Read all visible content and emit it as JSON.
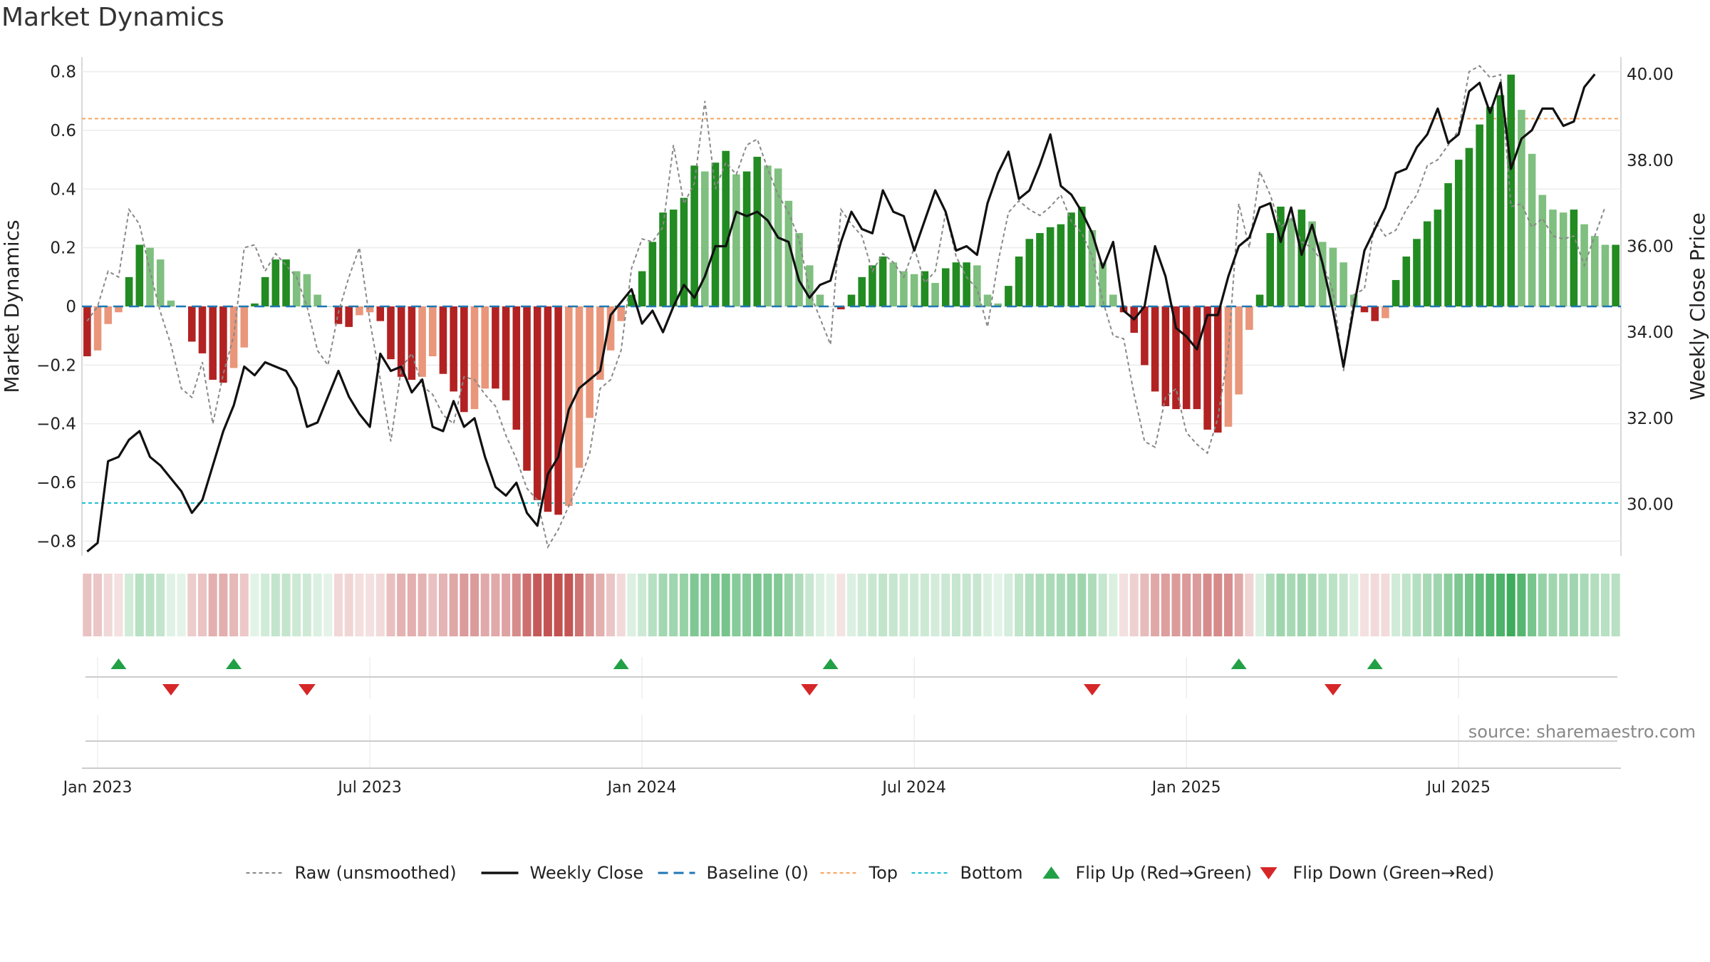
{
  "title": "Market Dynamics",
  "source": "source: sharemaestro.com",
  "chart_data": {
    "type": "bar+line",
    "title": "Market Dynamics",
    "ylabel": "Market Dynamics",
    "y2label": "Weekly Close Price",
    "ylim": [
      -0.85,
      0.85
    ],
    "y2lim": [
      28.8,
      40.4
    ],
    "yticks": [
      "0.8",
      "0.6",
      "0.4",
      "0.2",
      "0",
      "−0.2",
      "−0.4",
      "−0.6",
      "−0.8"
    ],
    "ytick_values": [
      0.8,
      0.6,
      0.4,
      0.2,
      0,
      -0.2,
      -0.4,
      -0.6,
      -0.8
    ],
    "y2ticks": [
      "40.00",
      "38.00",
      "36.00",
      "34.00",
      "32.00",
      "30.00"
    ],
    "y2tick_values": [
      40,
      38,
      36,
      34,
      32,
      30
    ],
    "xtick_labels": [
      "Jan 2023",
      "Jul 2023",
      "Jan 2024",
      "Jul 2024",
      "Jan 2025",
      "Jul 2025"
    ],
    "xtick_weeks": [
      1,
      27,
      53,
      79,
      105,
      131
    ],
    "top_line": 0.64,
    "bottom_line": -0.67,
    "baseline": 0,
    "dynamics": [
      -0.17,
      -0.15,
      -0.06,
      -0.02,
      0.1,
      0.21,
      0.2,
      0.16,
      0.02,
      0,
      -0.12,
      -0.16,
      -0.25,
      -0.26,
      -0.21,
      -0.14,
      0.01,
      0.1,
      0.16,
      0.16,
      0.12,
      0.11,
      0.04,
      0,
      -0.06,
      -0.07,
      -0.03,
      -0.02,
      -0.05,
      -0.18,
      -0.24,
      -0.25,
      -0.24,
      -0.17,
      -0.23,
      -0.29,
      -0.36,
      -0.35,
      -0.28,
      -0.28,
      -0.32,
      -0.42,
      -0.56,
      -0.66,
      -0.7,
      -0.71,
      -0.68,
      -0.55,
      -0.38,
      -0.25,
      -0.15,
      -0.05,
      0.04,
      0.12,
      0.22,
      0.32,
      0.33,
      0.37,
      0.48,
      0.46,
      0.49,
      0.53,
      0.45,
      0.46,
      0.51,
      0.48,
      0.47,
      0.36,
      0.25,
      0.14,
      0.04,
      0,
      -0.01,
      0.04,
      0.1,
      0.14,
      0.17,
      0.15,
      0.12,
      0.11,
      0.12,
      0.08,
      0.13,
      0.15,
      0.15,
      0.14,
      0.04,
      0.01,
      0.07,
      0.17,
      0.23,
      0.25,
      0.27,
      0.28,
      0.32,
      0.34,
      0.26,
      0.15,
      0.04,
      -0.02,
      -0.09,
      -0.2,
      -0.29,
      -0.34,
      -0.35,
      -0.35,
      -0.35,
      -0.42,
      -0.43,
      -0.41,
      -0.3,
      -0.08,
      0.04,
      0.25,
      0.34,
      0.3,
      0.33,
      0.29,
      0.22,
      0.2,
      0.15,
      0.04,
      -0.02,
      -0.05,
      -0.04,
      0.09,
      0.17,
      0.23,
      0.29,
      0.33,
      0.42,
      0.5,
      0.54,
      0.62,
      0.68,
      0.72,
      0.79,
      0.67,
      0.52,
      0.38,
      0.33,
      0.32,
      0.33,
      0.28,
      0.24,
      0.21,
      0.21
    ],
    "raw": [
      -0.05,
      0,
      0.12,
      0.1,
      0.33,
      0.28,
      0.12,
      -0.02,
      -0.13,
      -0.28,
      -0.31,
      -0.19,
      -0.4,
      -0.23,
      -0.1,
      0.2,
      0.21,
      0.12,
      0.18,
      0.14,
      0.1,
      0,
      -0.15,
      -0.2,
      -0.02,
      0.1,
      0.2,
      -0.05,
      -0.25,
      -0.46,
      -0.21,
      -0.16,
      -0.27,
      -0.3,
      -0.37,
      -0.4,
      -0.24,
      -0.25,
      -0.3,
      -0.34,
      -0.44,
      -0.52,
      -0.62,
      -0.66,
      -0.82,
      -0.76,
      -0.68,
      -0.6,
      -0.5,
      -0.28,
      -0.25,
      -0.15,
      0.13,
      0.23,
      0.22,
      0.27,
      0.55,
      0.35,
      0.42,
      0.7,
      0.4,
      0.49,
      0.45,
      0.55,
      0.57,
      0.47,
      0.38,
      0.32,
      0.23,
      0.05,
      -0.04,
      -0.13,
      0.33,
      0.28,
      0.24,
      0.12,
      0.18,
      0.15,
      0.1,
      0.2,
      0.08,
      0.12,
      0.32,
      0.17,
      0.1,
      0.06,
      -0.07,
      0.15,
      0.32,
      0.36,
      0.33,
      0.31,
      0.34,
      0.38,
      0.29,
      0.25,
      0.17,
      0.02,
      -0.1,
      -0.11,
      -0.3,
      -0.46,
      -0.48,
      -0.31,
      -0.28,
      -0.43,
      -0.47,
      -0.5,
      -0.38,
      -0.15,
      0.35,
      0.2,
      0.46,
      0.38,
      0.27,
      0.3,
      0.22,
      0.2,
      0.15,
      0.05,
      -0.22,
      0.04,
      0.06,
      0.29,
      0.24,
      0.26,
      0.33,
      0.38,
      0.48,
      0.5,
      0.55,
      0.6,
      0.8,
      0.82,
      0.78,
      0.79,
      0.34,
      0.35,
      0.27,
      0.3,
      0.24,
      0.23,
      0.24,
      0.14,
      0.24,
      0.34
    ],
    "close": [
      28.9,
      29.1,
      31.0,
      31.1,
      31.5,
      31.7,
      31.1,
      30.9,
      30.6,
      30.3,
      29.8,
      30.1,
      30.9,
      31.7,
      32.3,
      33.2,
      33.0,
      33.3,
      33.2,
      33.1,
      32.7,
      31.8,
      31.9,
      32.5,
      33.1,
      32.5,
      32.1,
      31.8,
      33.5,
      33.1,
      33.2,
      32.6,
      32.9,
      31.8,
      31.7,
      32.4,
      31.8,
      32.0,
      31.1,
      30.4,
      30.2,
      30.5,
      29.8,
      29.5,
      30.7,
      31.1,
      32.2,
      32.7,
      32.9,
      33.1,
      34.4,
      34.7,
      35.0,
      34.2,
      34.5,
      34.0,
      34.6,
      35.1,
      34.8,
      35.3,
      36.0,
      36.0,
      36.8,
      36.7,
      36.8,
      36.6,
      36.2,
      36.1,
      35.2,
      34.8,
      35.1,
      35.2,
      36.1,
      36.8,
      36.4,
      36.3,
      37.3,
      36.8,
      36.7,
      35.9,
      36.6,
      37.3,
      36.8,
      35.9,
      36.0,
      35.8,
      37.0,
      37.7,
      38.2,
      37.1,
      37.3,
      37.9,
      38.6,
      37.4,
      37.2,
      36.8,
      36.3,
      35.5,
      36.1,
      34.5,
      34.3,
      34.6,
      36.0,
      35.3,
      34.1,
      33.9,
      33.6,
      34.4,
      34.4,
      35.3,
      36.0,
      36.2,
      36.9,
      37.0,
      36.1,
      36.9,
      35.8,
      36.5,
      35.6,
      34.5,
      33.2,
      34.6,
      35.9,
      36.4,
      36.9,
      37.7,
      37.8,
      38.3,
      38.6,
      39.2,
      38.4,
      38.6,
      39.6,
      39.8,
      39.1,
      39.8,
      37.8,
      38.5,
      38.7,
      39.2,
      39.2,
      38.8,
      38.9,
      39.7,
      40.0
    ],
    "flip_up_weeks": [
      3,
      14,
      51,
      71,
      110,
      123
    ],
    "flip_down_weeks": [
      8,
      21,
      69,
      96,
      119
    ],
    "colors": {
      "pos_strong": "#228b22",
      "pos_weak": "#7fbf7f",
      "neg_strong": "#b22222",
      "neg_weak": "#e9967a",
      "close": "#111111",
      "raw": "#888888",
      "baseline": "#1f77b4",
      "top": "#f4a460",
      "bottom": "#17becf",
      "flip_up": "#22a045",
      "flip_down": "#d62728"
    },
    "legend": [
      {
        "key": "raw",
        "label": "Raw (unsmoothed)"
      },
      {
        "key": "close",
        "label": "Weekly Close"
      },
      {
        "key": "baseline",
        "label": "Baseline (0)"
      },
      {
        "key": "top",
        "label": "Top"
      },
      {
        "key": "bottom",
        "label": "Bottom"
      },
      {
        "key": "flip_up",
        "label": "Flip Up (Red→Green)"
      },
      {
        "key": "flip_down",
        "label": "Flip Down (Green→Red)"
      }
    ]
  }
}
